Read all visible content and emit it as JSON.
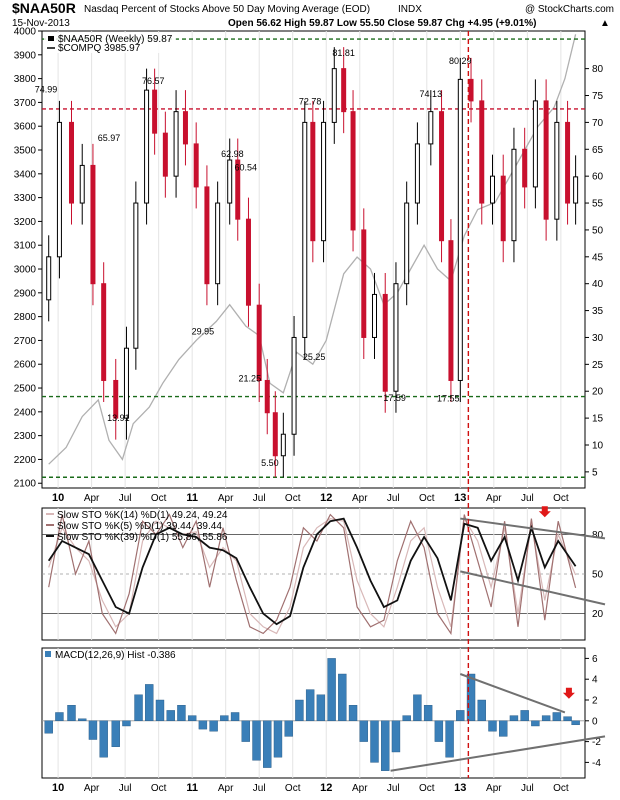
{
  "header": {
    "symbol": "$NAA50R",
    "description": "Nasdaq Percent of Stocks Above 50 Day Moving Average (EOD)",
    "exchange": "INDX",
    "watermark": "@ StockCharts.com",
    "date": "15-Nov-2013",
    "quote": "Open 56.62  High 59.87  Low 55.50  Close 59.87  Chg +4.95 (+9.01%)",
    "quote_arrow": "▲"
  },
  "colors": {
    "up_candle": "#000000",
    "down_candle": "#c8102e",
    "compq_line": "#b0b0b0",
    "support_line": "#1a6b1a",
    "resistance_line": "#c8102e",
    "macd_hist": "#3a7fb8",
    "trendline": "#707070",
    "sto_fast": "#d8b8b8",
    "sto_mid": "#a07070",
    "sto_slow": "#111111"
  },
  "chart_data": [
    {
      "type": "candlestick",
      "title": "$NAA50R Weekly",
      "legend": [
        {
          "label": "$NAA50R (Weekly) 59.87",
          "style": "candle"
        },
        {
          "label": "$COMPQ  3985.97",
          "style": "line"
        }
      ],
      "x_tick_labels": [
        "10",
        "Apr",
        "Jul",
        "Oct",
        "11",
        "Apr",
        "Jul",
        "Oct",
        "12",
        "Apr",
        "Jul",
        "Oct",
        "13",
        "Apr",
        "Jul",
        "Oct"
      ],
      "y_right_ticks": [
        5,
        10,
        15,
        20,
        25,
        30,
        35,
        40,
        45,
        50,
        55,
        60,
        65,
        70,
        75,
        80
      ],
      "y_right_range": [
        2,
        87
      ],
      "y_left_ticks": [
        2100,
        2200,
        2300,
        2400,
        2500,
        2600,
        2700,
        2800,
        2900,
        3000,
        3100,
        3200,
        3300,
        3400,
        3500,
        3600,
        3700,
        3800,
        3900,
        4000
      ],
      "y_left_range": [
        2080,
        4000
      ],
      "horizontal_lines": [
        {
          "value": 85.5,
          "color": "green"
        },
        {
          "value": 72.5,
          "color": "red"
        },
        {
          "value": 19,
          "color": "green"
        },
        {
          "value": 4,
          "color": "green"
        }
      ],
      "vertical_line": {
        "x": 2013.08
      },
      "annotations": [
        {
          "x": 2009.93,
          "value": 74.99,
          "label": "74.99"
        },
        {
          "x": 2010.73,
          "value": 76.57,
          "label": "76.57"
        },
        {
          "x": 2010.4,
          "value": 65.97,
          "label": "65.97"
        },
        {
          "x": 2010.47,
          "value": 13.91,
          "label": "13.91"
        },
        {
          "x": 2011.32,
          "value": 62.98,
          "label": "62.98"
        },
        {
          "x": 2011.42,
          "value": 60.54,
          "label": "60.54"
        },
        {
          "x": 2011.1,
          "value": 29.95,
          "label": "29.95"
        },
        {
          "x": 2011.45,
          "value": 21.25,
          "label": "21.25"
        },
        {
          "x": 2011.6,
          "value": 5.5,
          "label": "5.50"
        },
        {
          "x": 2011.9,
          "value": 72.78,
          "label": "72.78"
        },
        {
          "x": 2011.93,
          "value": 25.25,
          "label": "25.25"
        },
        {
          "x": 2012.15,
          "value": 81.81,
          "label": "81.81"
        },
        {
          "x": 2012.53,
          "value": 17.59,
          "label": "17.59"
        },
        {
          "x": 2012.8,
          "value": 74.13,
          "label": "74.13"
        },
        {
          "x": 2012.93,
          "value": 17.55,
          "label": "17.55"
        },
        {
          "x": 2013.02,
          "value": 80.29,
          "label": "80.29"
        }
      ],
      "naa50r": {
        "x": [
          2009.95,
          2010.03,
          2010.12,
          2010.2,
          2010.28,
          2010.36,
          2010.45,
          2010.53,
          2010.6,
          2010.68,
          2010.74,
          2010.82,
          2010.9,
          2010.97,
          2011.05,
          2011.13,
          2011.21,
          2011.3,
          2011.36,
          2011.44,
          2011.52,
          2011.58,
          2011.64,
          2011.7,
          2011.78,
          2011.86,
          2011.92,
          2012.0,
          2012.08,
          2012.15,
          2012.22,
          2012.3,
          2012.38,
          2012.46,
          2012.54,
          2012.62,
          2012.7,
          2012.8,
          2012.88,
          2012.95,
          2013.02,
          2013.1,
          2013.18,
          2013.26,
          2013.34,
          2013.42,
          2013.5,
          2013.58,
          2013.66,
          2013.74,
          2013.82,
          2013.88
        ],
        "values": [
          45,
          70,
          55,
          62,
          40,
          22,
          15,
          28,
          55,
          76,
          68,
          60,
          72,
          66,
          58,
          40,
          55,
          63,
          52,
          36,
          22,
          16,
          8,
          12,
          30,
          70,
          48,
          70,
          80,
          72,
          50,
          30,
          38,
          20,
          40,
          55,
          66,
          72,
          48,
          22,
          78,
          74,
          55,
          60,
          48,
          65,
          58,
          74,
          52,
          70,
          55,
          59.87
        ]
      },
      "compq": {
        "x": [
          2009.95,
          2010.08,
          2010.2,
          2010.32,
          2010.4,
          2010.5,
          2010.58,
          2010.7,
          2010.8,
          2010.92,
          2011.05,
          2011.2,
          2011.3,
          2011.42,
          2011.52,
          2011.6,
          2011.7,
          2011.8,
          2011.92,
          2012.02,
          2012.15,
          2012.25,
          2012.35,
          2012.45,
          2012.55,
          2012.65,
          2012.75,
          2012.85,
          2012.95,
          2013.05,
          2013.15,
          2013.28,
          2013.4,
          2013.5,
          2013.6,
          2013.72,
          2013.8,
          2013.88
        ],
        "values": [
          2180,
          2250,
          2380,
          2450,
          2280,
          2200,
          2350,
          2420,
          2520,
          2620,
          2700,
          2780,
          2850,
          2760,
          2720,
          2520,
          2480,
          2650,
          2600,
          2700,
          2980,
          3050,
          3000,
          2850,
          2900,
          3000,
          3100,
          3000,
          2950,
          3140,
          3250,
          3280,
          3400,
          3500,
          3600,
          3680,
          3800,
          3985.97
        ]
      }
    },
    {
      "type": "line",
      "title": "Slow Stochastics",
      "legend": [
        {
          "label": "Slow STO %K(14) %D(1) 49.24, 49.24",
          "style": "fast"
        },
        {
          "label": "Slow STO %K(5) %D(1) 39.44, 39.44",
          "style": "mid"
        },
        {
          "label": "Slow STO %K(39) %D(1) 55.86, 55.86",
          "style": "slow"
        }
      ],
      "y_ticks": [
        20,
        50,
        80
      ],
      "y_range": [
        0,
        100
      ],
      "x": [
        2009.95,
        2010.05,
        2010.15,
        2010.25,
        2010.35,
        2010.45,
        2010.55,
        2010.65,
        2010.75,
        2010.85,
        2010.95,
        2011.05,
        2011.15,
        2011.25,
        2011.35,
        2011.45,
        2011.55,
        2011.65,
        2011.75,
        2011.85,
        2011.95,
        2012.05,
        2012.15,
        2012.25,
        2012.35,
        2012.45,
        2012.55,
        2012.65,
        2012.75,
        2012.85,
        2012.95,
        2013.05,
        2013.15,
        2013.25,
        2013.35,
        2013.45,
        2013.55,
        2013.65,
        2013.75,
        2013.88
      ],
      "series": [
        {
          "name": "%K(14)",
          "values": [
            55,
            85,
            70,
            60,
            30,
            10,
            20,
            75,
            90,
            85,
            80,
            82,
            55,
            70,
            60,
            20,
            10,
            5,
            25,
            70,
            85,
            92,
            90,
            45,
            20,
            10,
            40,
            75,
            85,
            40,
            10,
            92,
            75,
            40,
            85,
            20,
            88,
            30,
            80,
            49.24
          ]
        },
        {
          "name": "%K(5)",
          "values": [
            40,
            95,
            50,
            75,
            20,
            5,
            35,
            90,
            80,
            95,
            70,
            90,
            40,
            85,
            45,
            10,
            5,
            15,
            40,
            85,
            75,
            95,
            85,
            25,
            10,
            15,
            60,
            90,
            70,
            20,
            5,
            95,
            60,
            25,
            90,
            10,
            92,
            15,
            90,
            39.44
          ]
        },
        {
          "name": "%K(39)",
          "values": [
            60,
            75,
            70,
            65,
            45,
            25,
            20,
            55,
            80,
            85,
            80,
            78,
            70,
            68,
            62,
            40,
            20,
            12,
            18,
            55,
            80,
            90,
            92,
            70,
            45,
            25,
            30,
            60,
            78,
            62,
            30,
            88,
            85,
            60,
            78,
            45,
            85,
            55,
            75,
            55.86
          ]
        }
      ]
    },
    {
      "type": "bar",
      "title": "MACD Histogram",
      "legend": [
        {
          "label": "MACD(12,26,9) Hist -0.386",
          "style": "hist"
        }
      ],
      "y_ticks": [
        -4,
        -2,
        0,
        2,
        4,
        6
      ],
      "y_range": [
        -5.5,
        7
      ],
      "x": [
        2009.95,
        2010.03,
        2010.12,
        2010.2,
        2010.28,
        2010.36,
        2010.45,
        2010.53,
        2010.62,
        2010.7,
        2010.78,
        2010.86,
        2010.94,
        2011.02,
        2011.1,
        2011.18,
        2011.26,
        2011.34,
        2011.42,
        2011.5,
        2011.58,
        2011.66,
        2011.74,
        2011.82,
        2011.9,
        2011.98,
        2012.06,
        2012.14,
        2012.22,
        2012.3,
        2012.38,
        2012.46,
        2012.54,
        2012.62,
        2012.7,
        2012.78,
        2012.86,
        2012.94,
        2013.02,
        2013.1,
        2013.18,
        2013.26,
        2013.34,
        2013.42,
        2013.5,
        2013.58,
        2013.66,
        2013.74,
        2013.82,
        2013.88
      ],
      "values": [
        -1.2,
        0.8,
        1.5,
        0.2,
        -1.8,
        -3.5,
        -2.5,
        -0.5,
        2.5,
        3.5,
        2.0,
        1.0,
        1.5,
        0.5,
        -0.8,
        -1.0,
        0.5,
        0.8,
        -2.0,
        -3.8,
        -4.5,
        -3.5,
        -1.5,
        2.0,
        3.0,
        2.5,
        6.0,
        4.5,
        1.5,
        -2.0,
        -4.0,
        -4.8,
        -3.0,
        0.5,
        2.5,
        1.5,
        -2.0,
        -3.5,
        1.0,
        4.5,
        2.0,
        -1.0,
        -1.5,
        0.5,
        1.0,
        -0.5,
        0.5,
        0.8,
        0.4,
        -0.386
      ]
    }
  ]
}
